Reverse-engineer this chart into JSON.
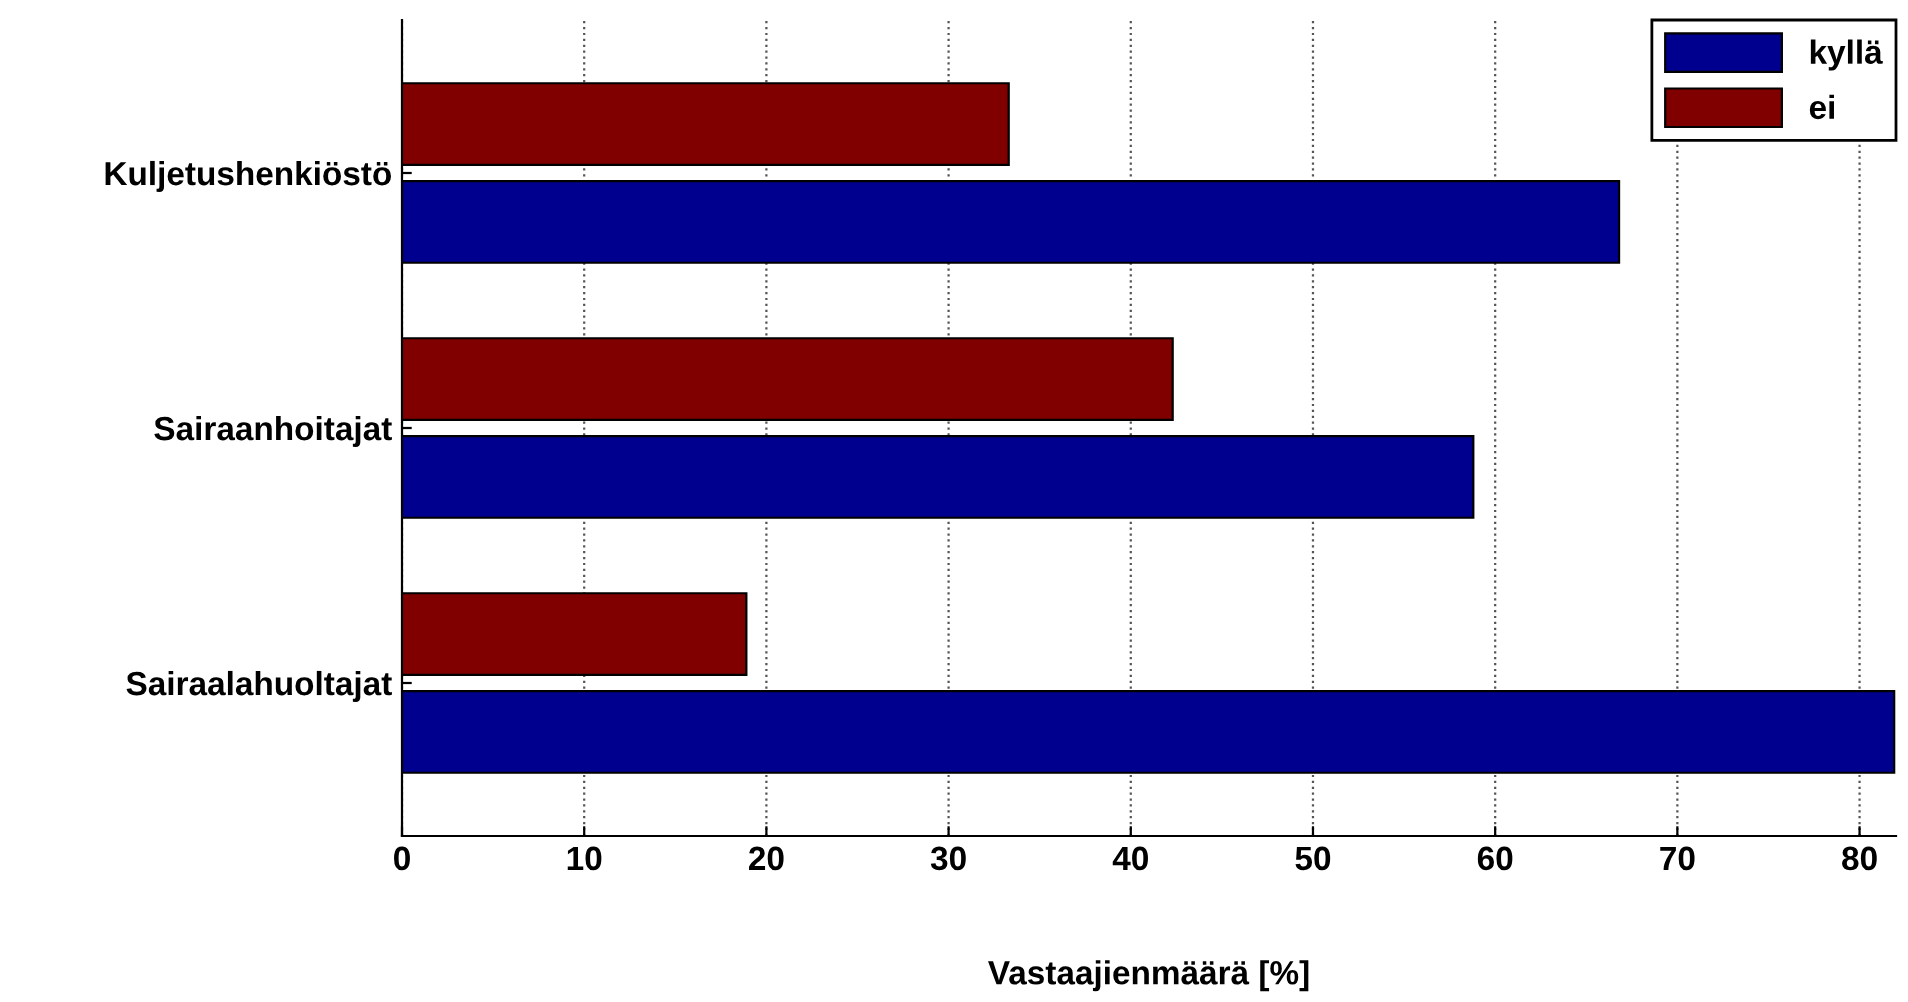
{
  "chart_data": {
    "type": "bar",
    "orientation": "horizontal",
    "categories": [
      "Kuljetushenkiöstö",
      "Sairaanhoitajat",
      "Sairaalahuoltajat"
    ],
    "series": [
      {
        "name": "kyllä",
        "color": "#00008f",
        "values": [
          66.8,
          58.8,
          81.9
        ]
      },
      {
        "name": "ei",
        "color": "#800000",
        "values": [
          33.3,
          42.3,
          18.9
        ]
      }
    ],
    "xlabel": "Vastaajienmäärä [%]",
    "xlim": [
      0,
      82
    ],
    "xticks": [
      0,
      10,
      20,
      30,
      40,
      50,
      60,
      70,
      80
    ],
    "grid": "x",
    "legend": "top right"
  }
}
